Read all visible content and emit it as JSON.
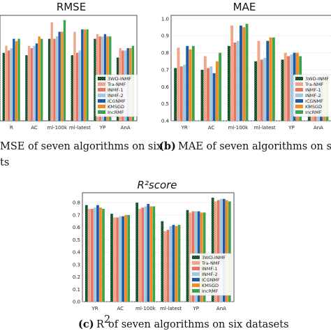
{
  "captions": [
    {
      "label": "",
      "text": "MSE of seven algorithms on six"
    },
    {
      "label": "(b)",
      "text": "MAE of seven algorithms on six d"
    },
    {
      "label": "",
      "text": "ts"
    },
    {
      "label": "(c)",
      "text_pre": "R",
      "sup": "2",
      "text_post": " of seven algorithms on six datasets"
    }
  ],
  "colors": [
    "#2e8b57",
    "#f0a58a",
    "#e8735e",
    "#9ecae1",
    "#1f5aa6",
    "#f58a1f",
    "#3fa34d"
  ],
  "chart_data": [
    {
      "type": "bar",
      "title": "RMSE",
      "categories": [
        "YR",
        "AC",
        "ml-100k",
        "ml-latest",
        "YP",
        "AnA"
      ],
      "category_labels": [
        "R",
        "AC",
        "ml-100k",
        "ml-latest",
        "YP",
        "AnA"
      ],
      "ylim": [
        0.5,
        0.95
      ],
      "yticks": [],
      "legend_position": "right",
      "grid": true,
      "series": [
        {
          "name": "3WD-INMF",
          "values": [
            0.79,
            0.78,
            0.85,
            0.78,
            0.85,
            0.77
          ]
        },
        {
          "name": "Tra-NMF",
          "values": [
            0.82,
            0.82,
            0.92,
            0.88,
            0.87,
            0.81
          ]
        },
        {
          "name": "INMF-1",
          "values": [
            0.8,
            0.81,
            0.85,
            0.79,
            0.86,
            0.8
          ]
        },
        {
          "name": "INMF-2",
          "values": [
            0.81,
            0.82,
            0.86,
            0.8,
            0.86,
            0.8
          ]
        },
        {
          "name": "ICGNMF",
          "values": [
            0.85,
            0.83,
            0.88,
            0.89,
            0.87,
            0.81
          ]
        },
        {
          "name": "KMSGD",
          "values": [
            0.84,
            0.86,
            0.88,
            0.89,
            0.86,
            0.81
          ]
        },
        {
          "name": "IncRMF",
          "values": [
            0.85,
            0.85,
            0.93,
            0.89,
            0.86,
            0.82
          ]
        }
      ]
    },
    {
      "type": "bar",
      "title": "MAE",
      "categories": [
        "YR",
        "AC",
        "ml-100k",
        "ml-latest",
        "YP",
        "AnA"
      ],
      "category_labels": [
        "YR",
        "AC",
        "ml-100k",
        "ml-latest",
        "YP",
        "AnA"
      ],
      "ylim": [
        0.4,
        1.02
      ],
      "yticks": [
        "0.4",
        "0.5",
        "0.6",
        "0.7",
        "0.8",
        "0.9",
        "1.0"
      ],
      "legend_position": "right",
      "grid": true,
      "series": [
        {
          "name": "3WD-INMF",
          "values": [
            0.71,
            0.7,
            0.84,
            0.75,
            0.76,
            0.6
          ]
        },
        {
          "name": "Tra-NMF",
          "values": [
            0.83,
            0.78,
            0.96,
            0.87,
            0.8,
            0.66
          ]
        },
        {
          "name": "INMF-1",
          "values": [
            0.72,
            0.71,
            0.86,
            0.76,
            0.78,
            0.67
          ]
        },
        {
          "name": "INMF-2",
          "values": [
            0.73,
            0.72,
            0.87,
            0.77,
            0.79,
            0.66
          ]
        },
        {
          "name": "ICGNMF",
          "values": [
            0.84,
            0.68,
            0.96,
            0.87,
            0.8,
            0.66
          ]
        },
        {
          "name": "KMSGD",
          "values": [
            0.82,
            0.75,
            0.95,
            0.89,
            0.8,
            0.67
          ]
        },
        {
          "name": "IncRMF",
          "values": [
            0.84,
            0.8,
            0.97,
            0.89,
            0.78,
            0.67
          ]
        }
      ]
    },
    {
      "type": "bar",
      "title": "R²score",
      "categories": [
        "YR",
        "AC",
        "ml-100k",
        "ml-latest",
        "YP",
        "AnA"
      ],
      "category_labels": [
        "YR",
        "AC",
        "ml-100k",
        "ml-latest",
        "YP",
        "AnA"
      ],
      "ylim": [
        0.0,
        0.88
      ],
      "yticks": [
        "0.0",
        "0.1",
        "0.2",
        "0.3",
        "0.4",
        "0.5",
        "0.6",
        "0.7",
        "0.8"
      ],
      "legend_position": "right",
      "grid": true,
      "series": [
        {
          "name": "3WD-INMF",
          "values": [
            0.78,
            0.71,
            0.8,
            0.65,
            0.74,
            0.84
          ]
        },
        {
          "name": "Tra-NMF",
          "values": [
            0.75,
            0.68,
            0.75,
            0.57,
            0.72,
            0.81
          ]
        },
        {
          "name": "INMF-1",
          "values": [
            0.75,
            0.68,
            0.76,
            0.58,
            0.73,
            0.82
          ]
        },
        {
          "name": "INMF-2",
          "values": [
            0.76,
            0.69,
            0.77,
            0.61,
            0.73,
            0.83
          ]
        },
        {
          "name": "ICGNMF",
          "values": [
            0.78,
            0.69,
            0.79,
            0.62,
            0.73,
            0.83
          ]
        },
        {
          "name": "KMSGD",
          "values": [
            0.76,
            0.7,
            0.77,
            0.61,
            0.72,
            0.82
          ]
        },
        {
          "name": "IncRMF",
          "values": [
            0.75,
            0.7,
            0.77,
            0.62,
            0.72,
            0.81
          ]
        }
      ]
    }
  ]
}
